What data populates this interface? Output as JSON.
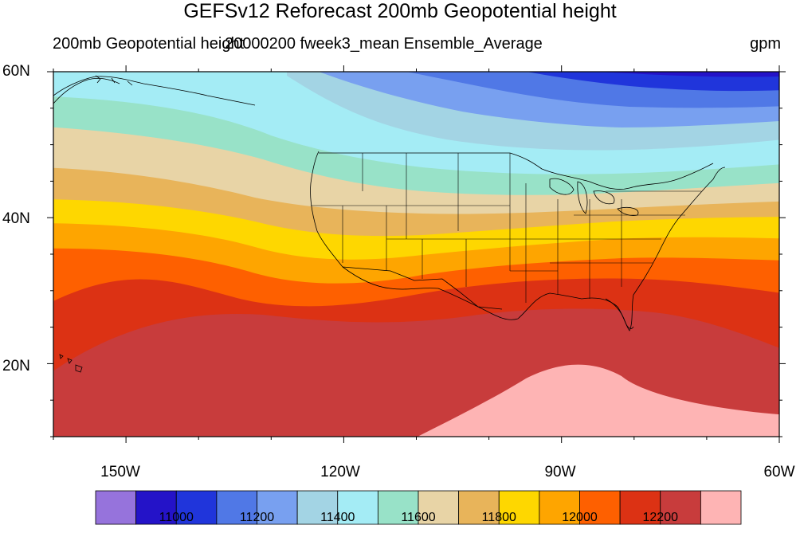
{
  "title": "GEFSv12 Reforecast 200mb Geopotential height",
  "subtitle_left": "200mb Geopotential height",
  "subtitle_center": "20000200 fweek3_mean Ensemble_Average",
  "subtitle_right": "gpm",
  "map": {
    "projection": "cylindrical-equidistant",
    "lon_range": [
      -160,
      -60
    ],
    "lat_range": [
      10,
      60
    ],
    "lat_ticks": [
      "60N",
      "40N",
      "20N"
    ],
    "lon_ticks": [
      "150W",
      "120W",
      "90W",
      "60W"
    ],
    "features": [
      "coastlines",
      "us-state-boundaries",
      "country-boundaries"
    ]
  },
  "colorbar": {
    "levels": [
      10900,
      11000,
      11100,
      11200,
      11300,
      11400,
      11500,
      11600,
      11700,
      11800,
      11900,
      12000,
      12100,
      12200,
      12300
    ],
    "labels": [
      "11000",
      "11200",
      "11400",
      "11600",
      "11800",
      "12000",
      "12200"
    ],
    "colors": [
      "#9673dc",
      "#2413c8",
      "#2035db",
      "#5078e6",
      "#78a0f0",
      "#a3d4e4",
      "#a4ecf5",
      "#98e2c8",
      "#e8d4a6",
      "#e8b45a",
      "#fed700",
      "#fea500",
      "#fe6000",
      "#dc3214",
      "#c83c3c",
      "#feb4b4"
    ]
  }
}
